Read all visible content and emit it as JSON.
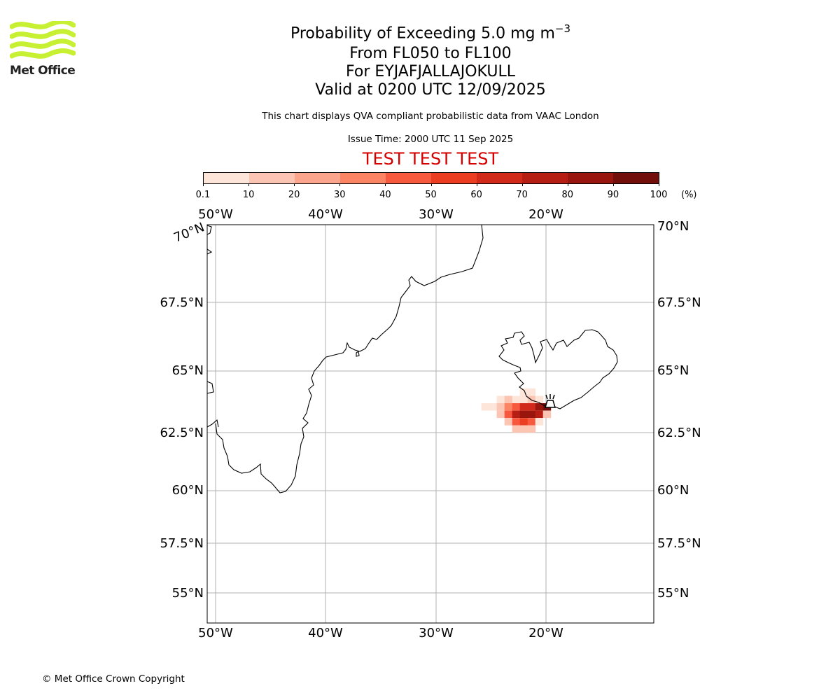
{
  "header": {
    "title_prefix": "Probability of Exceeding 5.0 mg m",
    "title_exponent": "−3",
    "flight_levels": "From FL050 to FL100",
    "volcano": "For EYJAFJALLAJOKULL",
    "valid_time": "Valid at 0200 UTC 12/09/2025",
    "subtitle": "This chart displays QVA compliant probabilistic data from VAAC London",
    "issue_time": "Issue Time: 2000 UTC 11 Sep 2025",
    "test_banner": "TEST TEST TEST",
    "test_color": "#d40000"
  },
  "logo": {
    "text": "Met Office",
    "wave_color": "#c8f032"
  },
  "colorbar": {
    "tick_labels": [
      "0.1",
      "10",
      "20",
      "30",
      "40",
      "50",
      "60",
      "70",
      "80",
      "90",
      "100"
    ],
    "unit": "(%)",
    "colors": [
      "#fee5d9",
      "#fcc5b3",
      "#fca58d",
      "#fb8465",
      "#f6593e",
      "#ea3d22",
      "#d22a1a",
      "#b71e13",
      "#98160d",
      "#720f0a"
    ]
  },
  "map": {
    "lon_labels": [
      "50°W",
      "40°W",
      "30°W",
      "20°W"
    ],
    "lat_labels_left": [
      "70°N",
      "67.5°N",
      "65°N",
      "62.5°N",
      "60°N",
      "57.5°N",
      "55°N"
    ],
    "lat_labels_right": [
      "70°N",
      "67.5°N",
      "65°N",
      "62.5°N",
      "60°N",
      "57.5°N",
      "55°N"
    ],
    "gridline_color": "#b0b0b0",
    "volcano_marker": "volcano-icon",
    "ash_cloud": {
      "description_levels_percent": "0.1-100",
      "cells": [
        {
          "lon": -25.5,
          "lat": 63.55,
          "prob": 5
        },
        {
          "lon": -24.8,
          "lat": 63.55,
          "prob": 5
        },
        {
          "lon": -24.1,
          "lat": 63.85,
          "prob": 5
        },
        {
          "lon": -24.1,
          "lat": 63.55,
          "prob": 15
        },
        {
          "lon": -24.1,
          "lat": 63.25,
          "prob": 10
        },
        {
          "lon": -23.4,
          "lat": 63.85,
          "prob": 10
        },
        {
          "lon": -23.4,
          "lat": 63.55,
          "prob": 35
        },
        {
          "lon": -23.4,
          "lat": 63.25,
          "prob": 45
        },
        {
          "lon": -23.4,
          "lat": 62.95,
          "prob": 15
        },
        {
          "lon": -22.7,
          "lat": 63.85,
          "prob": 5
        },
        {
          "lon": -22.7,
          "lat": 63.55,
          "prob": 45
        },
        {
          "lon": -22.7,
          "lat": 63.25,
          "prob": 75
        },
        {
          "lon": -22.7,
          "lat": 62.95,
          "prob": 45
        },
        {
          "lon": -22.7,
          "lat": 62.65,
          "prob": 15
        },
        {
          "lon": -22.0,
          "lat": 64.15,
          "prob": 5
        },
        {
          "lon": -22.0,
          "lat": 63.85,
          "prob": 5
        },
        {
          "lon": -22.0,
          "lat": 63.55,
          "prob": 65
        },
        {
          "lon": -22.0,
          "lat": 63.25,
          "prob": 85
        },
        {
          "lon": -22.0,
          "lat": 62.95,
          "prob": 55
        },
        {
          "lon": -22.0,
          "lat": 62.65,
          "prob": 15
        },
        {
          "lon": -21.3,
          "lat": 64.15,
          "prob": 5
        },
        {
          "lon": -21.3,
          "lat": 63.85,
          "prob": 10
        },
        {
          "lon": -21.3,
          "lat": 63.55,
          "prob": 65
        },
        {
          "lon": -21.3,
          "lat": 63.25,
          "prob": 85
        },
        {
          "lon": -21.3,
          "lat": 62.95,
          "prob": 45
        },
        {
          "lon": -21.3,
          "lat": 62.65,
          "prob": 10
        },
        {
          "lon": -20.6,
          "lat": 63.85,
          "prob": 5
        },
        {
          "lon": -20.6,
          "lat": 63.55,
          "prob": 85
        },
        {
          "lon": -20.6,
          "lat": 63.25,
          "prob": 75
        },
        {
          "lon": -20.6,
          "lat": 62.95,
          "prob": 5
        },
        {
          "lon": -19.9,
          "lat": 63.55,
          "prob": 95
        },
        {
          "lon": -19.9,
          "lat": 63.25,
          "prob": 15
        }
      ]
    }
  },
  "footer": {
    "copyright": "© Met Office Crown Copyright"
  }
}
